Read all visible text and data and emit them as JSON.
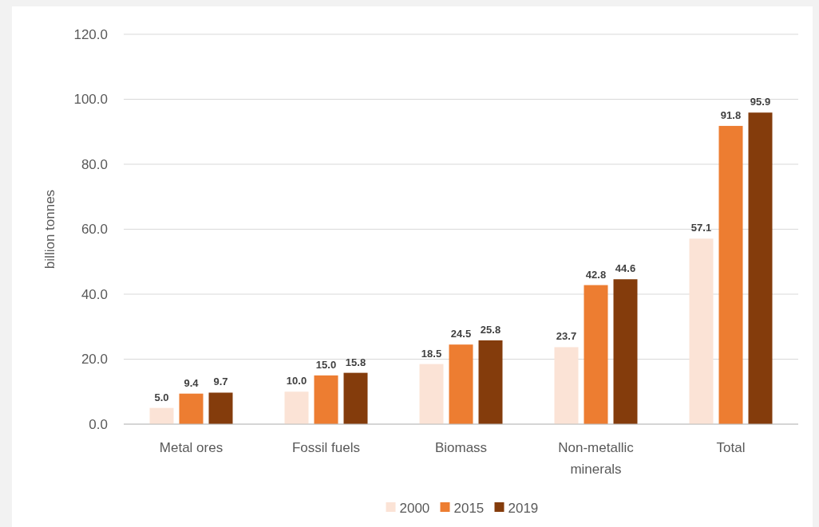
{
  "chart_data": {
    "type": "bar",
    "ylabel": "billion tonnes",
    "categories": [
      "Metal ores",
      "Fossil fuels",
      "Biomass",
      "Non-metallic minerals",
      "Total"
    ],
    "series": [
      {
        "name": "2000",
        "color": "#fbe3d6",
        "values": [
          5,
          10,
          18.5,
          23.7,
          57.1
        ],
        "value_labels": [
          "5.0",
          "10.0",
          "18.5",
          "23.7",
          "57.1"
        ]
      },
      {
        "name": "2015",
        "color": "#ed7d31",
        "values": [
          9.4,
          15,
          24.5,
          42.8,
          91.8
        ],
        "value_labels": [
          "9.4",
          "15.0",
          "24.5",
          "42.8",
          "91.8"
        ]
      },
      {
        "name": "2019",
        "color": "#843c0c",
        "values": [
          9.7,
          15.8,
          25.8,
          44.6,
          95.9
        ],
        "value_labels": [
          "9.7",
          "15.8",
          "25.8",
          "44.6",
          "95.9"
        ]
      }
    ],
    "ylim": [
      0,
      120
    ],
    "yticks": [
      {
        "value": 0,
        "label": "0.0"
      },
      {
        "value": 20,
        "label": "20.0"
      },
      {
        "value": 40,
        "label": "40.0"
      },
      {
        "value": 60,
        "label": "60.0"
      },
      {
        "value": 80,
        "label": "80.0"
      },
      {
        "value": 100,
        "label": "100.0"
      },
      {
        "value": 120,
        "label": "120.0"
      }
    ],
    "grid": "y",
    "legend": "bottom"
  }
}
